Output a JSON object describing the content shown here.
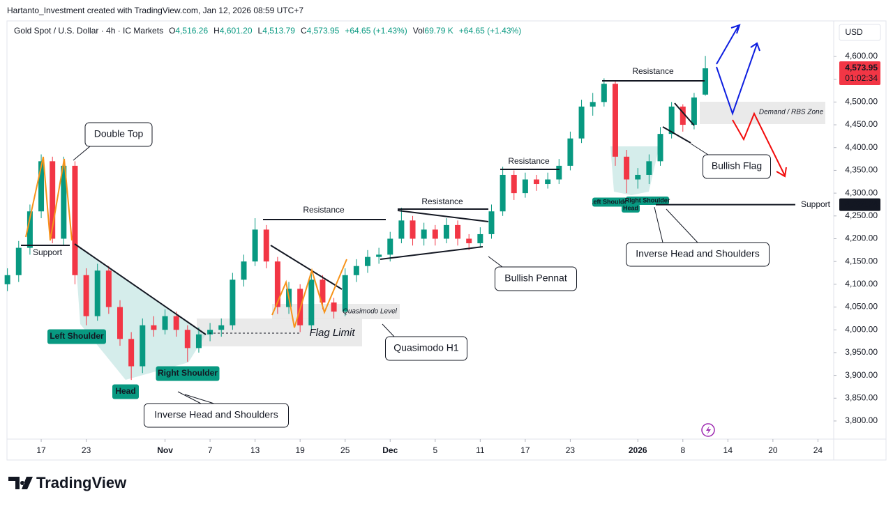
{
  "chart_data": {
    "type": "candlestick",
    "attribution": "Hartanto_Investment created with TradingView.com, Jan 12, 2026 08:59 UTC+7",
    "symbol": "Gold Spot / U.S. Dollar · 4h · IC Markets",
    "ohlc_legend": [
      {
        "key": "O",
        "value": 4516.26,
        "label": "4,516.26"
      },
      {
        "key": "H",
        "value": 4601.2,
        "label": "4,601.20"
      },
      {
        "key": "L",
        "value": 4513.79,
        "label": "4,513.79"
      },
      {
        "key": "C",
        "value": 4573.95,
        "label": "4,573.95"
      }
    ],
    "change": "+64.65 (+1.43%)",
    "volume_key": "Vol",
    "volume": "69.79 K",
    "volume_change": "+64.65 (+1.43%)",
    "currency": "USD",
    "last_price": {
      "value": 4573.95,
      "label": "4,573.95"
    },
    "countdown": "01:02:34",
    "support_level": {
      "name": "Support",
      "value": 4274.74,
      "label": "4,274.74"
    },
    "up_color": "#089981",
    "down_color": "#f23645",
    "x": [
      -3,
      -2,
      -1,
      0,
      1,
      2,
      3,
      4,
      5,
      6,
      7,
      8,
      9,
      10,
      11,
      12,
      13,
      14,
      15,
      16,
      17,
      18,
      19,
      20,
      21,
      22,
      23,
      24,
      25,
      26,
      27,
      28,
      29,
      30,
      31,
      32,
      33,
      34,
      35,
      36,
      37,
      38,
      39,
      40,
      41,
      42,
      43,
      44,
      45,
      46,
      47,
      48,
      49,
      50,
      51,
      52,
      53,
      54,
      55,
      56,
      57,
      58,
      59
    ],
    "open": [
      4100,
      4120,
      4180,
      4260,
      4370,
      4200,
      4360,
      4120,
      4030,
      4130,
      4050,
      3980,
      3920,
      4010,
      4000,
      4030,
      4000,
      3960,
      3990,
      4000,
      4010,
      4110,
      4150,
      4220,
      4150,
      4050,
      4090,
      4010,
      4110,
      4060,
      4040,
      4120,
      4140,
      4160,
      4165,
      4200,
      4240,
      4200,
      4220,
      4200,
      4230,
      4200,
      4190,
      4210,
      4260,
      4340,
      4300,
      4330,
      4320,
      4330,
      4360,
      4420,
      4490,
      4500,
      4540,
      4380,
      4330,
      4340,
      4370,
      4430,
      4490,
      4450,
      4516.26
    ],
    "high": [
      4135,
      4195,
      4275,
      4385,
      4380,
      4380,
      4370,
      4135,
      4145,
      4140,
      4065,
      3995,
      4025,
      4030,
      4045,
      4040,
      4010,
      4005,
      4015,
      4025,
      4125,
      4165,
      4245,
      4230,
      4160,
      4105,
      4100,
      4125,
      4120,
      4070,
      4135,
      4155,
      4175,
      4180,
      4215,
      4268,
      4250,
      4235,
      4230,
      4245,
      4240,
      4210,
      4225,
      4275,
      4358,
      4350,
      4345,
      4340,
      4345,
      4375,
      4435,
      4505,
      4520,
      4552,
      4548,
      4395,
      4355,
      4385,
      4445,
      4500,
      4495,
      4520,
      4601.2
    ],
    "low": [
      4085,
      4105,
      4165,
      4245,
      4190,
      4185,
      4100,
      4010,
      4020,
      4035,
      3965,
      3890,
      3905,
      3985,
      3990,
      3985,
      3930,
      3950,
      3975,
      3985,
      4000,
      4095,
      4140,
      4135,
      4035,
      4035,
      3995,
      4000,
      4045,
      4025,
      4030,
      4105,
      4125,
      4145,
      4150,
      4190,
      4185,
      4185,
      4185,
      4190,
      4185,
      4175,
      4180,
      4200,
      4250,
      4285,
      4290,
      4305,
      4310,
      4320,
      4350,
      4410,
      4470,
      4490,
      4360,
      4300,
      4310,
      4320,
      4360,
      4420,
      4435,
      4440,
      4513.79
    ],
    "close": [
      4120,
      4180,
      4260,
      4370,
      4200,
      4360,
      4120,
      4030,
      4130,
      4050,
      3980,
      3920,
      4010,
      4000,
      4030,
      4000,
      3960,
      3990,
      4000,
      4010,
      4110,
      4150,
      4220,
      4150,
      4050,
      4090,
      4010,
      4110,
      4060,
      4040,
      4120,
      4140,
      4160,
      4165,
      4200,
      4240,
      4200,
      4220,
      4200,
      4230,
      4200,
      4190,
      4210,
      4260,
      4340,
      4300,
      4330,
      4320,
      4330,
      4360,
      4420,
      4490,
      4500,
      4540,
      4380,
      4330,
      4340,
      4370,
      4430,
      4490,
      4450,
      4510,
      4573.95
    ],
    "xlim": [
      -3.04,
      70.4
    ],
    "xticks": [
      {
        "value": 0,
        "label": "17"
      },
      {
        "value": 4,
        "label": "23"
      },
      {
        "value": 11,
        "label": "Nov"
      },
      {
        "value": 15,
        "label": "7"
      },
      {
        "value": 19,
        "label": "13"
      },
      {
        "value": 23,
        "label": "19"
      },
      {
        "value": 27,
        "label": "25"
      },
      {
        "value": 31,
        "label": "Dec"
      },
      {
        "value": 35,
        "label": "5"
      },
      {
        "value": 39,
        "label": "11"
      },
      {
        "value": 43,
        "label": "17"
      },
      {
        "value": 47,
        "label": "23"
      },
      {
        "value": 53,
        "label": "2026"
      },
      {
        "value": 57,
        "label": "8"
      },
      {
        "value": 61,
        "label": "14"
      },
      {
        "value": 65,
        "label": "20"
      },
      {
        "value": 69,
        "label": "24"
      }
    ],
    "ylim": [
      3714.3,
      4678
    ],
    "yticks": [
      {
        "value": 3800,
        "label": "3,800.00"
      },
      {
        "value": 3850,
        "label": "3,850.00"
      },
      {
        "value": 3900,
        "label": "3,900.00"
      },
      {
        "value": 3950,
        "label": "3,950.00"
      },
      {
        "value": 4000,
        "label": "4,000.00"
      },
      {
        "value": 4050,
        "label": "4,050.00"
      },
      {
        "value": 4100,
        "label": "4,100.00"
      },
      {
        "value": 4150,
        "label": "4,150.00"
      },
      {
        "value": 4200,
        "label": "4,200.00"
      },
      {
        "value": 4250,
        "label": "4,250.00"
      },
      {
        "value": 4300,
        "label": "4,300.00"
      },
      {
        "value": 4350,
        "label": "4,350.00"
      },
      {
        "value": 4400,
        "label": "4,400.00"
      },
      {
        "value": 4450,
        "label": "4,450.00"
      },
      {
        "value": 4500,
        "label": "4,500.00"
      },
      {
        "value": 4550,
        "label": "4,550.00"
      },
      {
        "value": 4600,
        "label": "4,600.00"
      }
    ],
    "annotations": [
      "Double Top",
      "Support",
      "Left Shoulder",
      "Head",
      "Right Shoulder",
      "Inverse Head and Shoulders",
      "Resistance",
      "Flag Limit",
      "Quasimodo Level",
      "Quasimodo H1",
      "Resistance",
      "Bullish Pennat",
      "Resistance",
      "Resistance",
      "Demand / RBS Zone",
      "Bullish Flag",
      "Left Shoulder",
      "Head",
      "Right Shoulder",
      "Inverse Head and Shoulders"
    ],
    "brand": "TradingView"
  }
}
